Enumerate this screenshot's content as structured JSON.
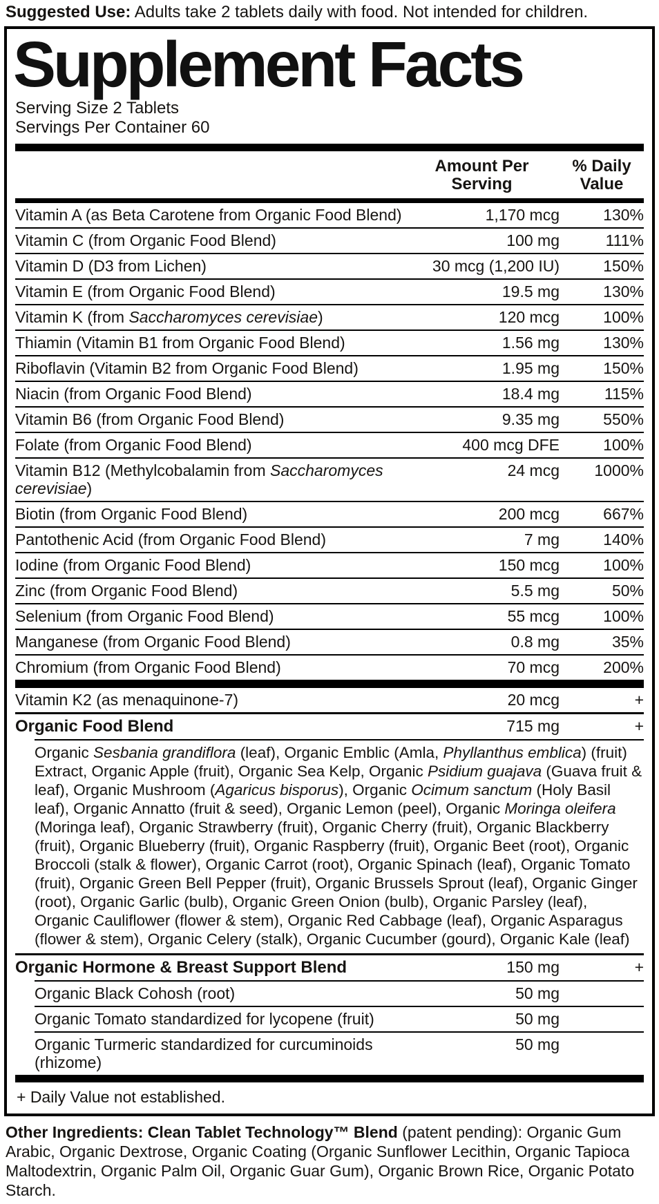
{
  "colors": {
    "ink": "#161412",
    "background": "#ffffff",
    "rule": "#000000"
  },
  "suggested_use": {
    "label": "Suggested Use:",
    "text": " Adults take 2 tablets daily with food. Not intended for children."
  },
  "panel": {
    "title": "Supplement Facts",
    "serving_size": "Serving Size 2 Tablets",
    "servings_per_container": "Servings Per Container 60",
    "col_amount": "Amount Per\nServing",
    "col_dv": "% Daily\nValue",
    "main_rows": [
      {
        "name": "Vitamin A (as Beta Carotene from Organic Food Blend)",
        "amount": "1,170 mcg",
        "dv": "130%"
      },
      {
        "name": "Vitamin C (from Organic Food Blend)",
        "amount": "100 mg",
        "dv": "111%"
      },
      {
        "name": "Vitamin D (D3 from Lichen)",
        "amount": "30 mcg (1,200 IU)",
        "dv": "150%"
      },
      {
        "name": "Vitamin E (from Organic Food Blend)",
        "amount": "19.5 mg",
        "dv": "130%"
      },
      {
        "name": "Vitamin K (from <i>Saccharomyces cerevisiae</i>)",
        "amount": "120 mcg",
        "dv": "100%"
      },
      {
        "name": "Thiamin (Vitamin B1 from Organic Food Blend)",
        "amount": "1.56 mg",
        "dv": "130%"
      },
      {
        "name": "Riboflavin (Vitamin B2 from Organic Food Blend)",
        "amount": "1.95 mg",
        "dv": "150%"
      },
      {
        "name": "Niacin (from Organic Food Blend)",
        "amount": "18.4 mg",
        "dv": "115%"
      },
      {
        "name": "Vitamin B6 (from Organic Food Blend)",
        "amount": "9.35 mg",
        "dv": "550%"
      },
      {
        "name": "Folate (from Organic Food Blend)",
        "amount": "400 mcg DFE",
        "dv": "100%"
      },
      {
        "name": "Vitamin B12 (Methylcobalamin from <i>Saccharomyces cerevisiae</i>)",
        "amount": "24 mcg",
        "dv": "1000%"
      },
      {
        "name": "Biotin (from Organic Food Blend)",
        "amount": "200 mcg",
        "dv": "667%"
      },
      {
        "name": "Pantothenic Acid (from Organic Food Blend)",
        "amount": "7 mg",
        "dv": "140%"
      },
      {
        "name": "Iodine (from Organic Food Blend)",
        "amount": "150 mcg",
        "dv": "100%"
      },
      {
        "name": "Zinc (from Organic Food Blend)",
        "amount": "5.5 mg",
        "dv": "50%"
      },
      {
        "name": "Selenium (from Organic Food Blend)",
        "amount": "55 mcg",
        "dv": "100%"
      },
      {
        "name": "Manganese (from Organic Food Blend)",
        "amount": "0.8 mg",
        "dv": "35%"
      },
      {
        "name": "Chromium (from Organic Food Blend)",
        "amount": "70 mcg",
        "dv": "200%"
      }
    ],
    "k2_row": {
      "name": "Vitamin K2 (as menaquinone-7)",
      "amount": "20 mcg",
      "dv": "+"
    },
    "food_blend_row": {
      "name": "Organic Food Blend",
      "amount": "715 mg",
      "dv": "+"
    },
    "food_blend_description": "Organic <i>Sesbania grandiflora</i> (leaf), Organic Emblic (Amla, <i>Phyllanthus emblica</i>) (fruit) Extract, Organic Apple (fruit), Organic Sea Kelp, Organic <i>Psidium guajava</i> (Guava fruit &amp; leaf), Organic Mushroom (<i>Agaricus bisporus</i>), Organic <i>Ocimum sanctum</i> (Holy Basil leaf), Organic Annatto (fruit &amp; seed), Organic Lemon (peel), Organic <i>Moringa oleifera</i> (Moringa leaf), Organic Strawberry (fruit), Organic Cherry (fruit), Organic Blackberry (fruit), Organic Blueberry (fruit), Organic Raspberry (fruit), Organic Beet (root), Organic Broccoli (stalk &amp; flower), Organic Carrot (root), Organic Spinach (leaf), Organic Tomato (fruit), Organic Green Bell Pepper (fruit), Organic Brussels Sprout (leaf), Organic Ginger (root), Organic Garlic (bulb), Organic Green Onion (bulb), Organic Parsley (leaf), Organic Cauliflower (flower &amp; stem), Organic Red Cabbage (leaf), Organic Asparagus (flower &amp; stem), Organic Celery (stalk), Organic Cucumber (gourd), Organic Kale (leaf)",
    "hormone_blend_row": {
      "name": "Organic Hormone & Breast Support Blend",
      "amount": "150 mg",
      "dv": "+"
    },
    "hormone_sub_rows": [
      {
        "name": "Organic Black Cohosh (root)",
        "amount": "50 mg",
        "dv": ""
      },
      {
        "name": "Organic Tomato standardized for lycopene (fruit)",
        "amount": "50 mg",
        "dv": ""
      },
      {
        "name": "Organic Turmeric standardized for curcuminoids (rhizome)",
        "amount": "50 mg",
        "dv": ""
      }
    ],
    "footnote": "+ Daily Value not established."
  },
  "other_ingredients": {
    "label": "Other Ingredients: Clean Tablet Technology™ Blend",
    "text": " (patent pending): Organic Gum Arabic, Organic Dextrose, Organic Coating (Organic Sunflower Lecithin, Organic Tapioca Maltodextrin, Organic Palm Oil, Organic Guar Gum), Organic Brown Rice, Organic Potato Starch."
  }
}
